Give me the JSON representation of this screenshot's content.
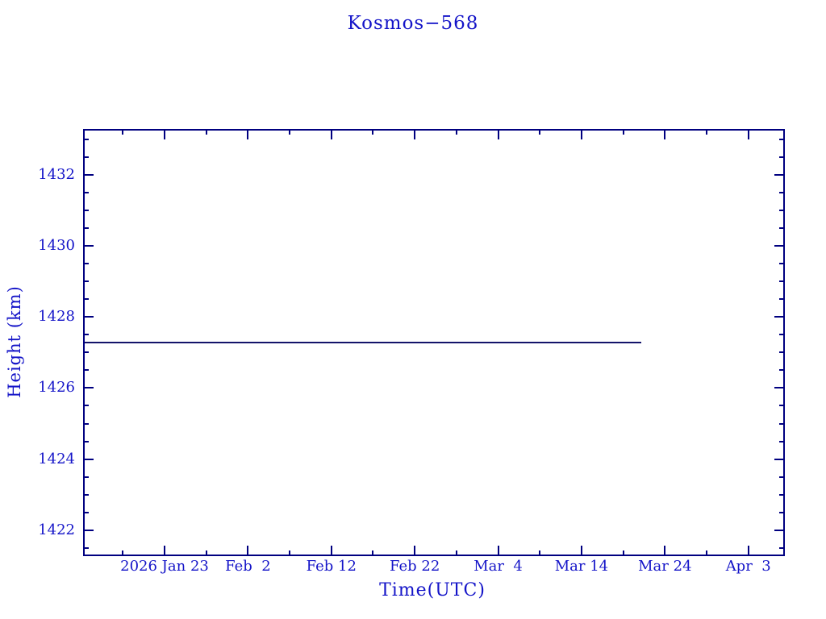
{
  "chart_data": {
    "type": "line",
    "title": "Kosmos−568",
    "xlabel": "Time(UTC)",
    "ylabel": "Height (km)",
    "legend": "none",
    "grid": false,
    "frame": "box with inward ticks on all four sides",
    "colors": {
      "text": "#1414c8",
      "frame": "#000080",
      "series": "#13136a",
      "background": "#ffffff"
    },
    "xlim_days": [
      0,
      84.15
    ],
    "x_axis_note": "x measured in days from plot left edge (≈ 2026 Jan 13 UTC); major ticks every 10 days, minor every 5",
    "ylim": [
      1421.27,
      1433.29
    ],
    "y_axis_note": "major ticks every 2 km, minor ticks every 0.5 km",
    "x_major_ticks": [
      {
        "x": 9.77,
        "label": "2026 Jan 23"
      },
      {
        "x": 19.77,
        "label": "Feb  2"
      },
      {
        "x": 29.77,
        "label": "Feb 12"
      },
      {
        "x": 39.77,
        "label": "Feb 22"
      },
      {
        "x": 49.77,
        "label": "Mar  4"
      },
      {
        "x": 59.77,
        "label": "Mar 14"
      },
      {
        "x": 69.77,
        "label": "Mar 24"
      },
      {
        "x": 79.77,
        "label": "Apr  3"
      }
    ],
    "x_minor_ticks": [
      4.77,
      14.77,
      24.77,
      34.77,
      44.77,
      54.77,
      64.77,
      74.77
    ],
    "y_major_ticks": [
      {
        "y": 1432,
        "label": "1432"
      },
      {
        "y": 1430,
        "label": "1430"
      },
      {
        "y": 1428,
        "label": "1428"
      },
      {
        "y": 1426,
        "label": "1426"
      },
      {
        "y": 1424,
        "label": "1424"
      },
      {
        "y": 1422,
        "label": "1422"
      }
    ],
    "y_minor_ticks": [
      1433.0,
      1432.5,
      1431.5,
      1431.0,
      1430.5,
      1429.5,
      1429.0,
      1428.5,
      1427.5,
      1427.0,
      1426.5,
      1425.5,
      1425.0,
      1424.5,
      1423.5,
      1423.0,
      1422.5,
      1421.5
    ],
    "series": [
      {
        "name": "Kosmos-568 height",
        "color": "#13136a",
        "height_km": 1427.3,
        "start_date": "2026 Jan 13",
        "end_date": "2026 Mar 21",
        "points": [
          {
            "x": 0.0,
            "y": 1427.29
          },
          {
            "x": 66.9,
            "y": 1427.29
          }
        ]
      }
    ]
  }
}
